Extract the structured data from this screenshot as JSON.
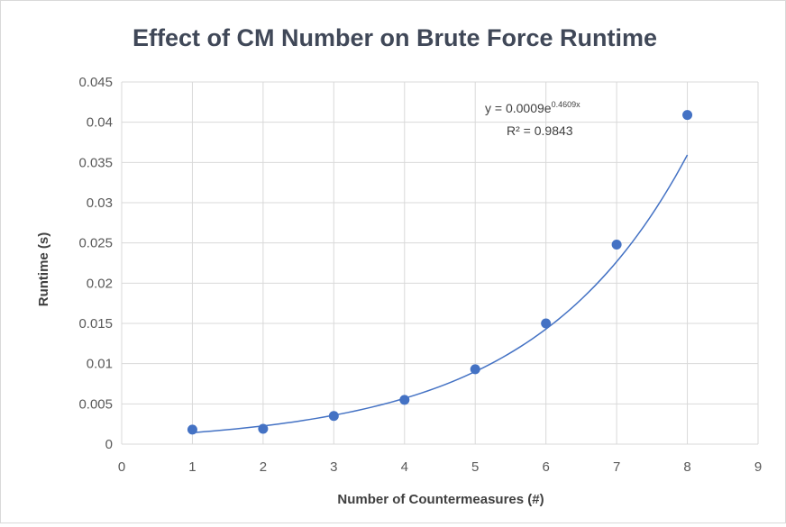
{
  "chart_data": {
    "type": "scatter",
    "title": "Effect of CM Number on Brute Force Runtime",
    "xlabel": "Number of Countermeasures (#)",
    "ylabel": "Runtime (s)",
    "xlim": [
      0,
      9
    ],
    "ylim": [
      0,
      0.045
    ],
    "x_ticks": [
      "0",
      "1",
      "2",
      "3",
      "4",
      "5",
      "6",
      "7",
      "8",
      "9"
    ],
    "y_ticks": [
      "0",
      "0.005",
      "0.01",
      "0.015",
      "0.02",
      "0.025",
      "0.03",
      "0.035",
      "0.04",
      "0.045"
    ],
    "grid": true,
    "legend": "none",
    "series": [
      {
        "x": [
          1,
          2,
          3,
          4,
          5,
          6,
          7,
          8
        ],
        "y": [
          0.0018,
          0.0019,
          0.0035,
          0.0055,
          0.0093,
          0.015,
          0.0248,
          0.0409
        ]
      }
    ],
    "trendline": {
      "type": "exponential",
      "a": 0.0009,
      "b": 0.4609,
      "x_range": [
        1,
        8
      ],
      "equation_prefix": "y = 0.0009e",
      "equation_exponent": "0.4609x",
      "r_squared_label": "R² = 0.9843"
    },
    "colors": {
      "marker": "#4472c4",
      "trendline": "#4472c4",
      "grid": "#d9d9d9",
      "title": "#404858"
    }
  }
}
